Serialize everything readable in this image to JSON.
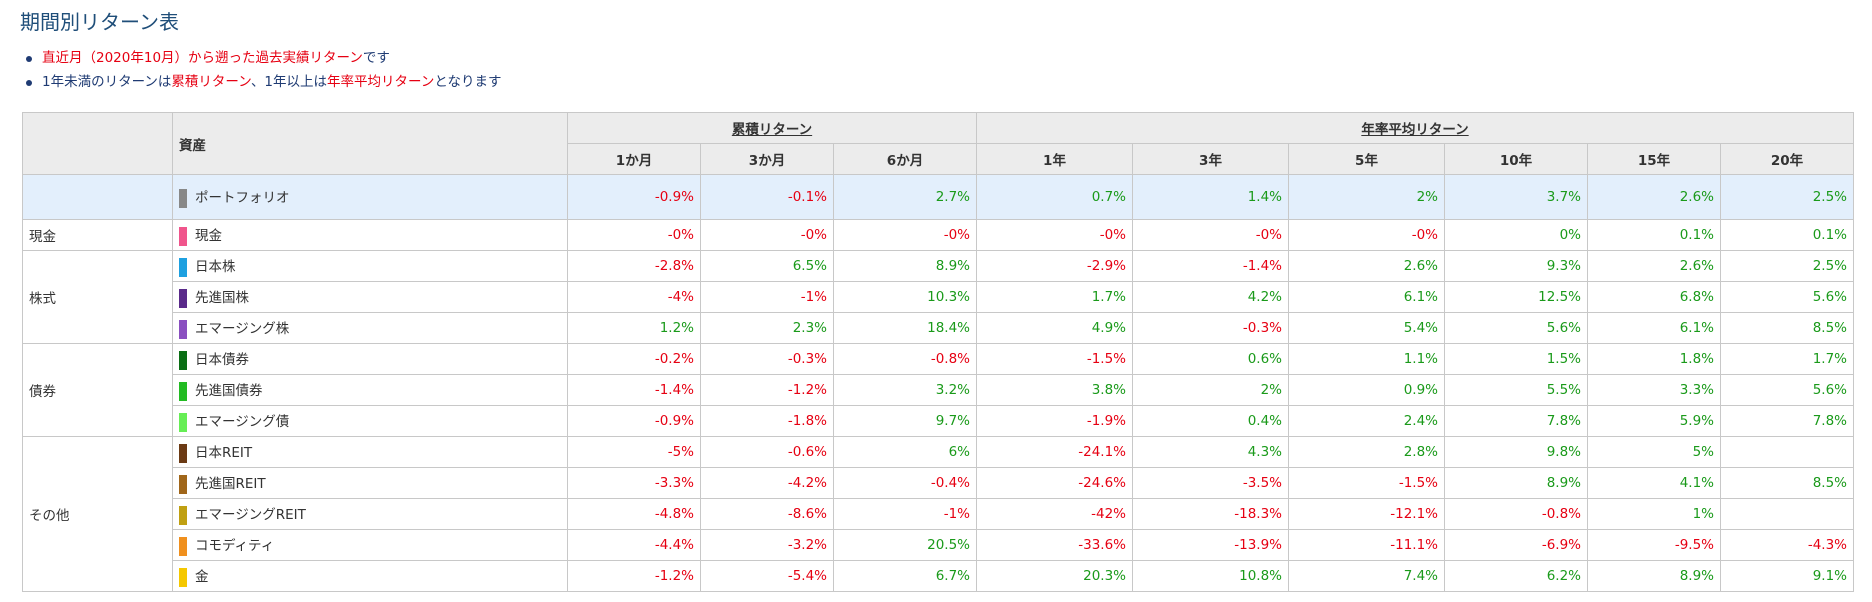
{
  "title": "期間別リターン表",
  "notes": [
    {
      "parts": [
        {
          "text": "直近月（2020年10月）から遡った過去実績リターン",
          "style": "red"
        },
        {
          "text": "です",
          "style": "blue"
        }
      ]
    },
    {
      "parts": [
        {
          "text": "1年未満のリターンは",
          "style": "blue"
        },
        {
          "text": "累積リターン",
          "style": "red"
        },
        {
          "text": "、1年以上は",
          "style": "blue"
        },
        {
          "text": "年率平均リターン",
          "style": "red"
        },
        {
          "text": "となります",
          "style": "blue"
        }
      ]
    }
  ],
  "table": {
    "asset_header": "資産",
    "group_headers": [
      "累積リターン",
      "年率平均リターン"
    ],
    "periods": [
      "1か月",
      "3か月",
      "6か月",
      "1年",
      "3年",
      "5年",
      "10年",
      "15年",
      "20年"
    ],
    "colors": {
      "positive": "#1a9a1a",
      "negative": "#e60012",
      "portfolio_row_bg": "#e3effc",
      "header_bg": "#ececec"
    },
    "portfolio": {
      "name": "ポートフォリオ",
      "color": "#888888",
      "values": [
        "-0.9%",
        "-0.1%",
        "2.7%",
        "0.7%",
        "1.4%",
        "2%",
        "3.7%",
        "2.6%",
        "2.5%"
      ]
    },
    "categories": [
      {
        "name": "現金",
        "assets": [
          {
            "name": "現金",
            "color": "#f0558c",
            "values": [
              "-0%",
              "-0%",
              "-0%",
              "-0%",
              "-0%",
              "-0%",
              "0%",
              "0.1%",
              "0.1%"
            ]
          }
        ]
      },
      {
        "name": "株式",
        "assets": [
          {
            "name": "日本株",
            "color": "#1ea0e0",
            "values": [
              "-2.8%",
              "6.5%",
              "8.9%",
              "-2.9%",
              "-1.4%",
              "2.6%",
              "9.3%",
              "2.6%",
              "2.5%"
            ]
          },
          {
            "name": "先進国株",
            "color": "#5a2a8a",
            "values": [
              "-4%",
              "-1%",
              "10.3%",
              "1.7%",
              "4.2%",
              "6.1%",
              "12.5%",
              "6.8%",
              "5.6%"
            ]
          },
          {
            "name": "エマージング株",
            "color": "#8a4fc0",
            "values": [
              "1.2%",
              "2.3%",
              "18.4%",
              "4.9%",
              "-0.3%",
              "5.4%",
              "5.6%",
              "6.1%",
              "8.5%"
            ]
          }
        ]
      },
      {
        "name": "債券",
        "assets": [
          {
            "name": "日本債券",
            "color": "#0a6e14",
            "values": [
              "-0.2%",
              "-0.3%",
              "-0.8%",
              "-1.5%",
              "0.6%",
              "1.1%",
              "1.5%",
              "1.8%",
              "1.7%"
            ]
          },
          {
            "name": "先進国債券",
            "color": "#22bb22",
            "values": [
              "-1.4%",
              "-1.2%",
              "3.2%",
              "3.8%",
              "2%",
              "0.9%",
              "5.5%",
              "3.3%",
              "5.6%"
            ]
          },
          {
            "name": "エマージング債",
            "color": "#66ee55",
            "values": [
              "-0.9%",
              "-1.8%",
              "9.7%",
              "-1.9%",
              "0.4%",
              "2.4%",
              "7.8%",
              "5.9%",
              "7.8%"
            ]
          }
        ]
      },
      {
        "name": "その他",
        "assets": [
          {
            "name": "日本REIT",
            "color": "#6b3a14",
            "values": [
              "-5%",
              "-0.6%",
              "6%",
              "-24.1%",
              "4.3%",
              "2.8%",
              "9.8%",
              "5%",
              ""
            ]
          },
          {
            "name": "先進国REIT",
            "color": "#a0661a",
            "values": [
              "-3.3%",
              "-4.2%",
              "-0.4%",
              "-24.6%",
              "-3.5%",
              "-1.5%",
              "8.9%",
              "4.1%",
              "8.5%"
            ]
          },
          {
            "name": "エマージングREIT",
            "color": "#c0a012",
            "values": [
              "-4.8%",
              "-8.6%",
              "-1%",
              "-42%",
              "-18.3%",
              "-12.1%",
              "-0.8%",
              "1%",
              ""
            ]
          },
          {
            "name": "コモディティ",
            "color": "#f0901e",
            "values": [
              "-4.4%",
              "-3.2%",
              "20.5%",
              "-33.6%",
              "-13.9%",
              "-11.1%",
              "-6.9%",
              "-9.5%",
              "-4.3%"
            ]
          },
          {
            "name": "金",
            "color": "#f5c800",
            "values": [
              "-1.2%",
              "-5.4%",
              "6.7%",
              "20.3%",
              "10.8%",
              "7.4%",
              "6.2%",
              "8.9%",
              "9.1%"
            ]
          }
        ]
      }
    ]
  }
}
